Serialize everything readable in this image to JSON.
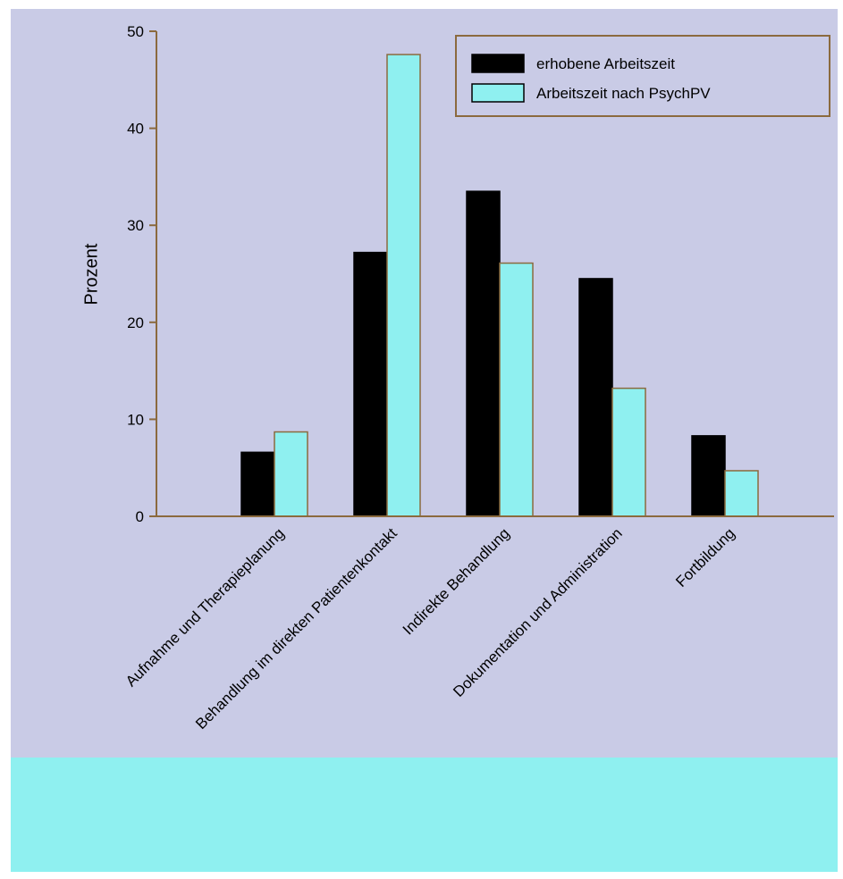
{
  "chart_data": {
    "type": "bar",
    "ylabel": "Prozent",
    "xlabel": "",
    "ylim": [
      0,
      50
    ],
    "yticks": [
      0,
      10,
      20,
      30,
      40,
      50
    ],
    "grid": false,
    "legend_position": "top-right",
    "categories": [
      "Aufnahme und Therapieplanung",
      "Behandlung im direkten Patientenkontakt",
      "Indirekte Behandlung",
      "Dokumentation und Administration",
      "Fortbildung"
    ],
    "series": [
      {
        "name": "erhobene Arbeitszeit",
        "color": "#000000",
        "values": [
          6.6,
          27.2,
          33.5,
          24.5,
          8.3
        ]
      },
      {
        "name": "Arbeitszeit nach PsychPV",
        "color": "#8ff0f0",
        "values": [
          8.7,
          47.6,
          26.1,
          13.2,
          4.7
        ]
      }
    ]
  },
  "colors": {
    "plot_background": "#c9cbe6",
    "band_background": "#8ff0f0",
    "axis": "#8b6a3e"
  }
}
